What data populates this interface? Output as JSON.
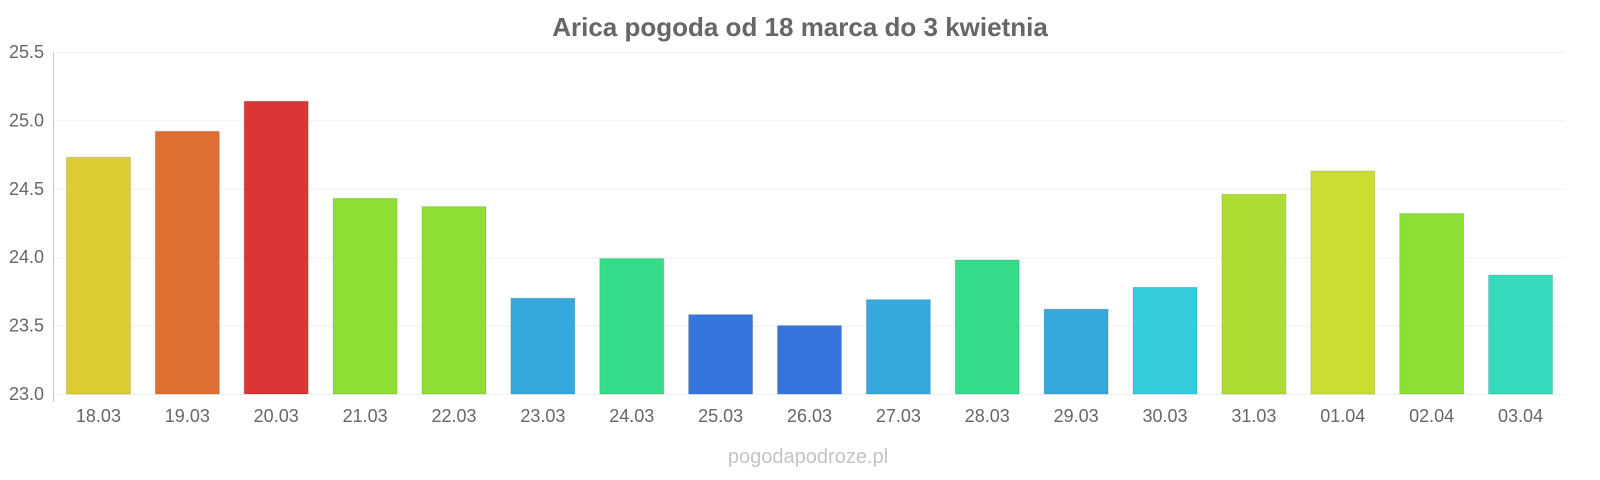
{
  "chart_data": {
    "type": "bar",
    "title": "Arica pogoda od 18 marca do 3 kwietnia",
    "xlabel": "",
    "ylabel": "",
    "categories": [
      "18.03",
      "19.03",
      "20.03",
      "21.03",
      "22.03",
      "23.03",
      "24.03",
      "25.03",
      "26.03",
      "27.03",
      "28.03",
      "29.03",
      "30.03",
      "31.03",
      "01.04",
      "02.04",
      "03.04"
    ],
    "values": [
      24.73,
      24.92,
      25.14,
      24.43,
      24.37,
      23.7,
      23.99,
      23.58,
      23.5,
      23.69,
      23.98,
      23.62,
      23.78,
      24.46,
      24.63,
      24.32,
      23.87
    ],
    "colors": [
      "#dccd34",
      "#df6f33",
      "#dc3535",
      "#8ddf34",
      "#8ddf34",
      "#35a9dc",
      "#35dc89",
      "#3575dc",
      "#3575dc",
      "#35a9dc",
      "#35dc89",
      "#35a9dc",
      "#35ccdc",
      "#addd32",
      "#cbdd32",
      "#8ddf34",
      "#35dcbb"
    ],
    "ylim": [
      23.0,
      25.5
    ],
    "yticks": [
      "23.0",
      "23.5",
      "24.0",
      "24.5",
      "25.0",
      "25.5"
    ],
    "grid": true,
    "legend": "none"
  },
  "watermark": "pogodapodroze.pl"
}
